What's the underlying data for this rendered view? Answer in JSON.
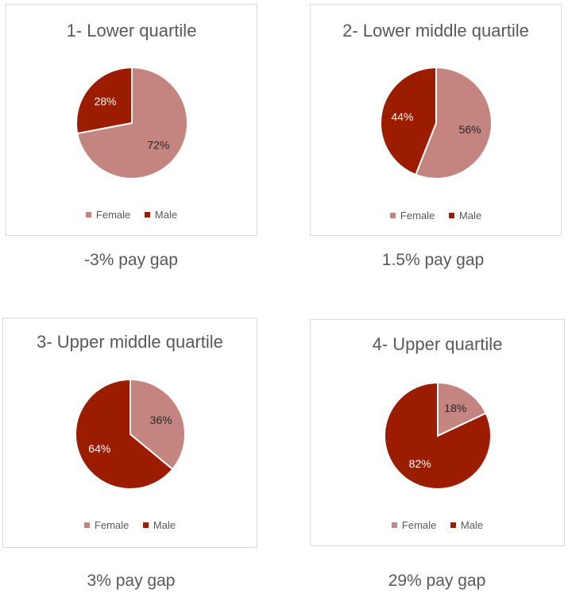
{
  "colors": {
    "female": "#c48580",
    "male": "#9c1c00"
  },
  "chart_data": [
    {
      "type": "pie",
      "title": "1- Lower quartile",
      "categories": [
        "Female",
        "Male"
      ],
      "values": [
        72,
        28
      ],
      "labels": [
        "72%",
        "28%"
      ],
      "legend": [
        "Female",
        "Male"
      ],
      "legend_placement": "bottom",
      "caption": "-3% pay gap"
    },
    {
      "type": "pie",
      "title": "2- Lower middle quartile",
      "categories": [
        "Female",
        "Male"
      ],
      "values": [
        56,
        44
      ],
      "labels": [
        "56%",
        "44%"
      ],
      "legend": [
        "Female",
        "Male"
      ],
      "legend_placement": "bottom",
      "caption": "1.5% pay gap"
    },
    {
      "type": "pie",
      "title": "3- Upper middle quartile",
      "categories": [
        "Female",
        "Male"
      ],
      "values": [
        36,
        64
      ],
      "labels": [
        "36%",
        "64%"
      ],
      "legend": [
        "Female",
        "Male"
      ],
      "legend_placement": "bottom",
      "caption": "3% pay gap"
    },
    {
      "type": "pie",
      "title": "4- Upper quartile",
      "categories": [
        "Female",
        "Male"
      ],
      "values": [
        18,
        82
      ],
      "labels": [
        "18%",
        "82%"
      ],
      "legend": [
        "Female",
        "Male"
      ],
      "legend_placement": "bottom",
      "caption": "29% pay gap"
    }
  ]
}
